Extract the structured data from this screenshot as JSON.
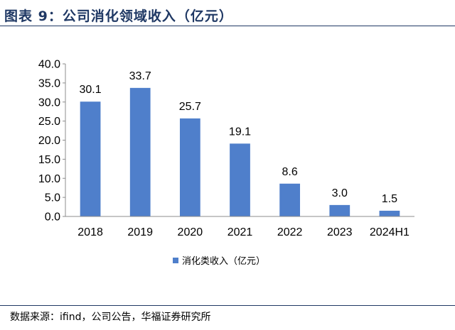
{
  "figure": {
    "title": "图表 9：公司消化领域收入（亿元）",
    "source": "数据来源：ifind，公司公告，华福证券研究所"
  },
  "chart_data": {
    "type": "bar",
    "title": "",
    "xlabel": "",
    "ylabel": "",
    "categories": [
      "2018",
      "2019",
      "2020",
      "2021",
      "2022",
      "2023",
      "2024H1"
    ],
    "series": [
      {
        "name": "消化类收入（亿元）",
        "color": "#4f7fcb",
        "values": [
          30.1,
          33.7,
          25.7,
          19.1,
          8.6,
          3.0,
          1.5
        ],
        "labels": [
          "30.1",
          "33.7",
          "25.7",
          "19.1",
          "8.6",
          "3.0",
          "1.5"
        ]
      }
    ],
    "ylim": [
      0,
      40
    ],
    "yticks": [
      "0.0",
      "5.0",
      "10.0",
      "15.0",
      "20.0",
      "25.0",
      "30.0",
      "35.0",
      "40.0"
    ],
    "grid": false,
    "legend": "bottom"
  }
}
